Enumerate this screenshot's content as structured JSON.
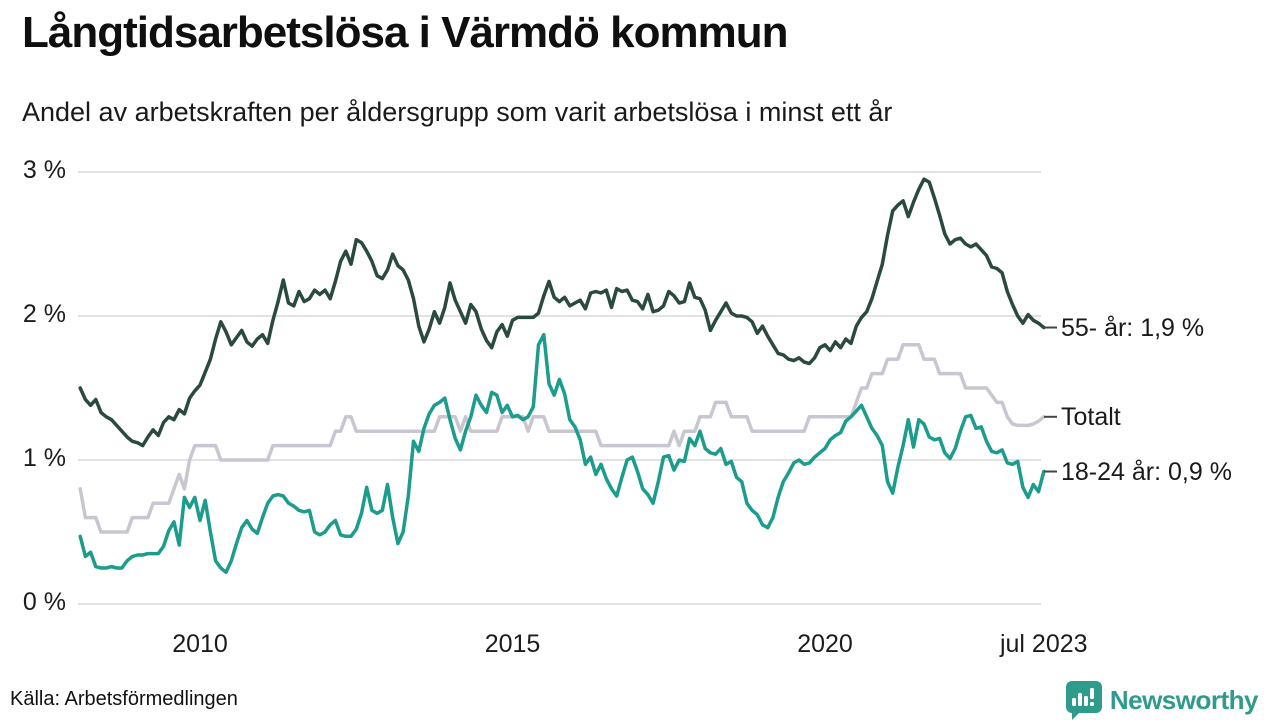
{
  "header": {
    "title": "Långtidsarbetslösa i Värmdö kommun",
    "subtitle": "Andel av arbetskraften per åldersgrupp som varit arbetslösa i minst ett år"
  },
  "footer": {
    "source": "Källa: Arbetsförmedlingen",
    "brand": "Newsworthy"
  },
  "colors": {
    "series_55": "#2a4a41",
    "series_total": "#c8c6d1",
    "series_18_24": "#1b9c8c",
    "gridline": "#e2e2e2",
    "tick_dash": "#444444",
    "brand_teal": "#2e9b8c",
    "text": "#1a1a1a"
  },
  "chart_data": {
    "type": "line",
    "title": "Långtidsarbetslösa i Värmdö kommun",
    "subtitle": "Andel av arbetskraften per åldersgrupp som varit arbetslösa i minst ett år",
    "x_unit": "month",
    "x_start": "2008-02",
    "x_end": "2023-07",
    "ylim": [
      0,
      3
    ],
    "grid": true,
    "legend_position": "right-end-labels",
    "y_ticks": [
      {
        "label": "0 %",
        "value": 0
      },
      {
        "label": "1 %",
        "value": 1
      },
      {
        "label": "2 %",
        "value": 2
      },
      {
        "label": "3 %",
        "value": 3
      }
    ],
    "x_ticks": [
      {
        "label": "2010",
        "year": 2010
      },
      {
        "label": "2015",
        "year": 2015
      },
      {
        "label": "2020",
        "year": 2020
      },
      {
        "label": "jul 2023",
        "year": 2023.5
      }
    ],
    "series": [
      {
        "name": "55- år",
        "end_label": "55- år: 1,9 %",
        "end_value_text": "1,9 %",
        "color": "#2a4a41",
        "values": [
          1.5,
          1.42,
          1.38,
          1.42,
          1.33,
          1.3,
          1.28,
          1.24,
          1.2,
          1.16,
          1.13,
          1.12,
          1.1,
          1.16,
          1.21,
          1.17,
          1.26,
          1.3,
          1.28,
          1.35,
          1.32,
          1.43,
          1.48,
          1.52,
          1.61,
          1.7,
          1.84,
          1.96,
          1.89,
          1.8,
          1.85,
          1.9,
          1.82,
          1.79,
          1.84,
          1.87,
          1.81,
          1.97,
          2.1,
          2.25,
          2.09,
          2.07,
          2.17,
          2.1,
          2.12,
          2.18,
          2.15,
          2.18,
          2.12,
          2.24,
          2.38,
          2.45,
          2.36,
          2.53,
          2.51,
          2.45,
          2.38,
          2.28,
          2.26,
          2.32,
          2.43,
          2.35,
          2.32,
          2.25,
          2.12,
          1.93,
          1.82,
          1.91,
          2.03,
          1.95,
          2.06,
          2.23,
          2.11,
          2.03,
          1.95,
          2.08,
          2.03,
          1.91,
          1.83,
          1.78,
          1.89,
          1.94,
          1.86,
          1.97,
          1.99,
          1.99,
          1.99,
          1.99,
          2.02,
          2.14,
          2.24,
          2.13,
          2.1,
          2.13,
          2.07,
          2.09,
          2.11,
          2.05,
          2.16,
          2.17,
          2.16,
          2.18,
          2.06,
          2.19,
          2.17,
          2.18,
          2.11,
          2.1,
          2.05,
          2.15,
          2.03,
          2.04,
          2.07,
          2.17,
          2.14,
          2.09,
          2.1,
          2.23,
          2.13,
          2.12,
          2.04,
          1.9,
          1.97,
          2.03,
          2.09,
          2.02,
          2.0,
          2.0,
          1.99,
          1.96,
          1.88,
          1.93,
          1.86,
          1.8,
          1.74,
          1.73,
          1.7,
          1.69,
          1.71,
          1.68,
          1.67,
          1.71,
          1.78,
          1.8,
          1.76,
          1.82,
          1.78,
          1.84,
          1.81,
          1.93,
          1.99,
          2.03,
          2.12,
          2.24,
          2.36,
          2.56,
          2.73,
          2.77,
          2.8,
          2.69,
          2.79,
          2.88,
          2.95,
          2.93,
          2.82,
          2.7,
          2.57,
          2.5,
          2.53,
          2.54,
          2.5,
          2.48,
          2.5,
          2.46,
          2.42,
          2.34,
          2.33,
          2.3,
          2.17,
          2.08,
          2.0,
          1.95,
          2.01,
          1.97,
          1.95,
          1.92
        ]
      },
      {
        "name": "Totalt",
        "end_label": "Totalt",
        "end_value_text": "",
        "color": "#c8c6d1",
        "values": [
          0.8,
          0.6,
          0.6,
          0.6,
          0.5,
          0.5,
          0.5,
          0.5,
          0.5,
          0.5,
          0.6,
          0.6,
          0.6,
          0.6,
          0.7,
          0.7,
          0.7,
          0.7,
          0.8,
          0.9,
          0.8,
          1.0,
          1.1,
          1.1,
          1.1,
          1.1,
          1.1,
          1.0,
          1.0,
          1.0,
          1.0,
          1.0,
          1.0,
          1.0,
          1.0,
          1.0,
          1.0,
          1.1,
          1.1,
          1.1,
          1.1,
          1.1,
          1.1,
          1.1,
          1.1,
          1.1,
          1.1,
          1.1,
          1.1,
          1.2,
          1.2,
          1.3,
          1.3,
          1.2,
          1.2,
          1.2,
          1.2,
          1.2,
          1.2,
          1.2,
          1.2,
          1.2,
          1.2,
          1.2,
          1.2,
          1.2,
          1.2,
          1.2,
          1.2,
          1.3,
          1.3,
          1.3,
          1.3,
          1.2,
          1.3,
          1.2,
          1.2,
          1.2,
          1.2,
          1.2,
          1.2,
          1.3,
          1.3,
          1.3,
          1.3,
          1.3,
          1.2,
          1.3,
          1.3,
          1.3,
          1.2,
          1.2,
          1.2,
          1.2,
          1.2,
          1.2,
          1.2,
          1.2,
          1.2,
          1.2,
          1.1,
          1.1,
          1.1,
          1.1,
          1.1,
          1.1,
          1.1,
          1.1,
          1.1,
          1.1,
          1.1,
          1.1,
          1.1,
          1.1,
          1.2,
          1.1,
          1.2,
          1.2,
          1.2,
          1.3,
          1.3,
          1.3,
          1.4,
          1.4,
          1.4,
          1.3,
          1.3,
          1.3,
          1.3,
          1.2,
          1.2,
          1.2,
          1.2,
          1.2,
          1.2,
          1.2,
          1.2,
          1.2,
          1.2,
          1.2,
          1.3,
          1.3,
          1.3,
          1.3,
          1.3,
          1.3,
          1.3,
          1.3,
          1.3,
          1.4,
          1.5,
          1.5,
          1.6,
          1.6,
          1.6,
          1.7,
          1.7,
          1.7,
          1.8,
          1.8,
          1.8,
          1.8,
          1.7,
          1.7,
          1.7,
          1.6,
          1.6,
          1.6,
          1.6,
          1.6,
          1.5,
          1.5,
          1.5,
          1.5,
          1.5,
          1.45,
          1.4,
          1.4,
          1.3,
          1.25,
          1.24,
          1.24,
          1.24,
          1.25,
          1.27,
          1.3
        ]
      },
      {
        "name": "18-24 år",
        "end_label": "18-24 år: 0,9 %",
        "end_value_text": "0,9 %",
        "color": "#1b9c8c",
        "values": [
          0.47,
          0.33,
          0.36,
          0.26,
          0.25,
          0.25,
          0.26,
          0.25,
          0.25,
          0.3,
          0.33,
          0.34,
          0.34,
          0.35,
          0.35,
          0.35,
          0.4,
          0.51,
          0.57,
          0.41,
          0.74,
          0.67,
          0.74,
          0.58,
          0.72,
          0.5,
          0.3,
          0.25,
          0.22,
          0.3,
          0.42,
          0.53,
          0.58,
          0.52,
          0.49,
          0.6,
          0.7,
          0.75,
          0.76,
          0.75,
          0.7,
          0.68,
          0.65,
          0.64,
          0.65,
          0.5,
          0.48,
          0.5,
          0.55,
          0.58,
          0.48,
          0.47,
          0.47,
          0.52,
          0.63,
          0.81,
          0.65,
          0.63,
          0.65,
          0.83,
          0.6,
          0.42,
          0.5,
          0.75,
          1.13,
          1.06,
          1.22,
          1.32,
          1.38,
          1.4,
          1.43,
          1.28,
          1.15,
          1.07,
          1.2,
          1.3,
          1.45,
          1.38,
          1.33,
          1.47,
          1.45,
          1.33,
          1.38,
          1.3,
          1.31,
          1.28,
          1.3,
          1.37,
          1.8,
          1.87,
          1.53,
          1.45,
          1.56,
          1.46,
          1.28,
          1.23,
          1.14,
          0.97,
          1.02,
          0.9,
          0.97,
          0.87,
          0.8,
          0.75,
          0.88,
          1.0,
          1.02,
          0.92,
          0.8,
          0.76,
          0.7,
          0.85,
          1.02,
          1.03,
          0.93,
          1.0,
          0.99,
          1.15,
          1.1,
          1.2,
          1.08,
          1.05,
          1.04,
          1.08,
          0.97,
          0.99,
          0.88,
          0.85,
          0.7,
          0.65,
          0.62,
          0.55,
          0.53,
          0.6,
          0.74,
          0.85,
          0.91,
          0.98,
          1.0,
          0.97,
          0.98,
          1.02,
          1.05,
          1.08,
          1.14,
          1.17,
          1.19,
          1.27,
          1.3,
          1.34,
          1.38,
          1.3,
          1.22,
          1.17,
          1.1,
          0.85,
          0.77,
          0.95,
          1.1,
          1.28,
          1.09,
          1.28,
          1.25,
          1.16,
          1.14,
          1.15,
          1.05,
          1.01,
          1.08,
          1.2,
          1.3,
          1.31,
          1.22,
          1.23,
          1.13,
          1.06,
          1.05,
          1.07,
          0.98,
          0.97,
          0.99,
          0.81,
          0.74,
          0.83,
          0.78,
          0.92
        ]
      }
    ]
  }
}
